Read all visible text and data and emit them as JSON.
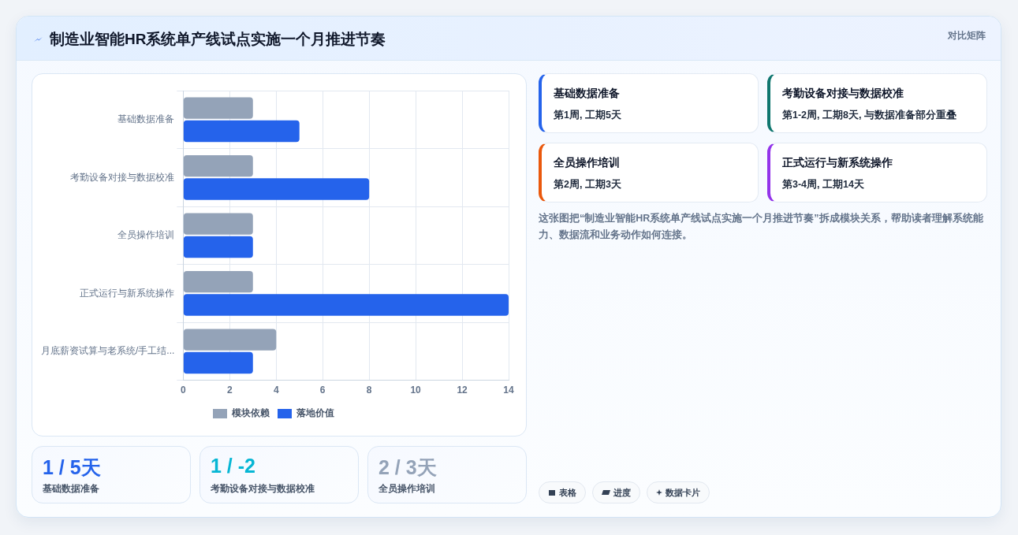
{
  "chart_data": {
    "type": "bar",
    "orientation": "horizontal",
    "title": "制造业智能HR系统单产线试点实施一个月推进节奏",
    "categories": [
      "基础数据准备",
      "考勤设备对接与数据校准",
      "全员操作培训",
      "正式运行与新系统操作",
      "月底薪资试算与老系统/手工结..."
    ],
    "series": [
      {
        "name": "模块依赖",
        "color": "#94a3b8",
        "values": [
          3,
          3,
          3,
          3,
          4
        ]
      },
      {
        "name": "落地价值",
        "color": "#2563eb",
        "values": [
          5,
          8,
          3,
          14,
          3
        ]
      }
    ],
    "xlim": [
      0,
      14
    ],
    "xticks": [
      0,
      2,
      4,
      6,
      8,
      10,
      12,
      14
    ],
    "grid": true,
    "legend": "bottom",
    "annotations": [
      "对比矩阵",
      "基础数据准备",
      "第1周, 工期5天",
      "考勤设备对接与数据校准",
      "第1-2周, 工期8天, 与数据准备部分重叠",
      "全员操作培训",
      "第2周, 工期3天",
      "正式运行与新系统操作",
      "第3-4周, 工期14天",
      "这张图把“制造业智能HR系统单产线试点实施一个月推进节奏”拆成模块关系，帮助读者理解系统能力、数据流和业务动作如何连接。",
      "1 / 5天",
      "基础数据准备",
      "1 / -2",
      "考勤设备对接与数据校准",
      "2 / 3天",
      "全员操作培训",
      "表格",
      "进度",
      "数据卡片"
    ]
  }
}
